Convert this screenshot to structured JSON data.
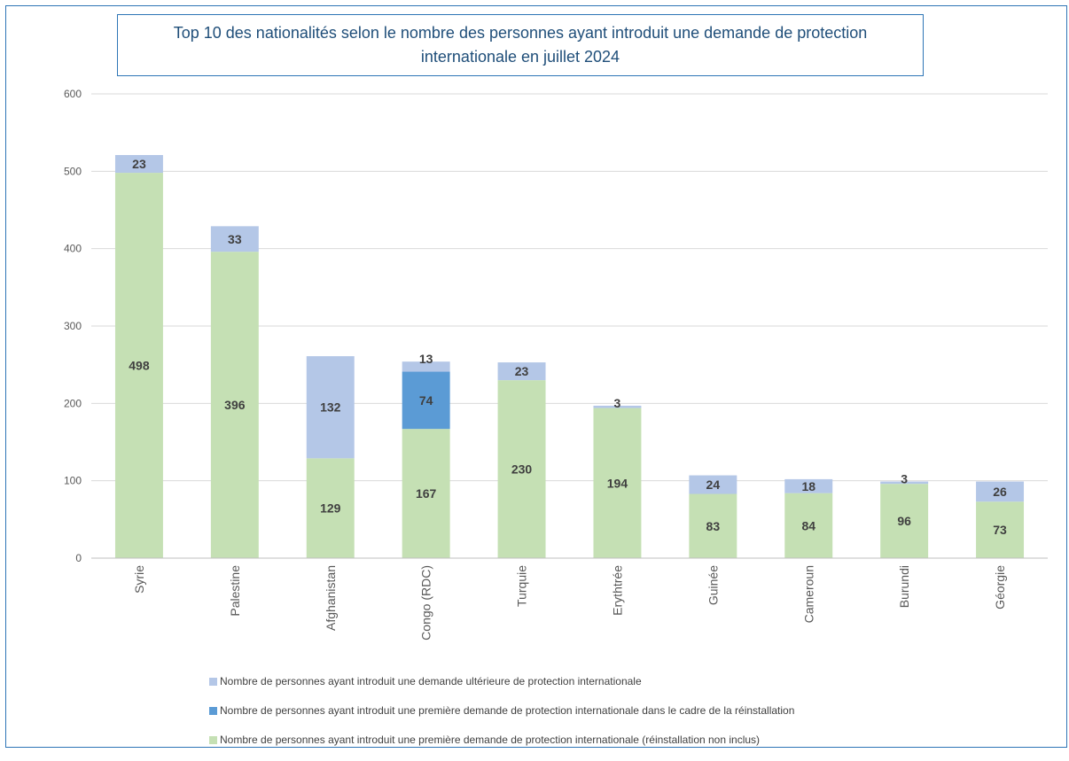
{
  "chart_data": {
    "type": "bar",
    "stacked": true,
    "title": "Top 10 des nationalités selon le nombre des personnes ayant introduit une demande de protection internationale en juillet 2024",
    "categories": [
      "Syrie",
      "Palestine",
      "Afghanistan",
      "Congo (RDC)",
      "Turquie",
      "Erythtrée",
      "Guinée",
      "Cameroun",
      "Burundi",
      "Géorgie"
    ],
    "series": [
      {
        "name": "Nombre de personnes ayant introduit une première demande de protection internationale (réinstallation non inclus)",
        "color": "#c5e0b4",
        "values": [
          498,
          396,
          129,
          167,
          230,
          194,
          83,
          84,
          96,
          73
        ]
      },
      {
        "name": "Nombre de personnes ayant introduit une première demande de protection internationale dans le cadre de la réinstallation",
        "color": "#5b9bd5",
        "values": [
          0,
          0,
          0,
          74,
          0,
          0,
          0,
          0,
          0,
          0
        ]
      },
      {
        "name": "Nombre de personnes ayant introduit une demande ultérieure de protection internationale",
        "color": "#b4c7e7",
        "values": [
          23,
          33,
          132,
          13,
          23,
          3,
          24,
          18,
          3,
          26
        ]
      }
    ],
    "ylim": [
      0,
      600
    ],
    "yticks": [
      0,
      100,
      200,
      300,
      400,
      500,
      600
    ],
    "grid": true,
    "legend_position": "bottom"
  }
}
